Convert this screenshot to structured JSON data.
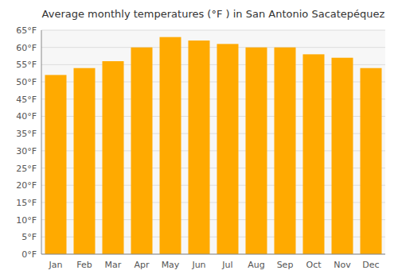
{
  "chart_data": {
    "type": "bar",
    "title": "Average monthly temperatures (°F ) in San Antonio Sacatepéquez",
    "categories": [
      "Jan",
      "Feb",
      "Mar",
      "Apr",
      "May",
      "Jun",
      "Jul",
      "Aug",
      "Sep",
      "Oct",
      "Nov",
      "Dec"
    ],
    "values": [
      52,
      54,
      56,
      60,
      63,
      62,
      61,
      60,
      60,
      58,
      57,
      54
    ],
    "color": "#FFAA00",
    "ylim": [
      0,
      65
    ],
    "yticks": [
      {
        "value": 0,
        "label": "0°F"
      },
      {
        "value": 5,
        "label": "5°F"
      },
      {
        "value": 10,
        "label": "10°F"
      },
      {
        "value": 15,
        "label": "15°F"
      },
      {
        "value": 20,
        "label": "20°F"
      },
      {
        "value": 25,
        "label": "25°F"
      },
      {
        "value": 30,
        "label": "30°F"
      },
      {
        "value": 35,
        "label": "35°F"
      },
      {
        "value": 40,
        "label": "40°F"
      },
      {
        "value": 45,
        "label": "45°F"
      },
      {
        "value": 50,
        "label": "50°F"
      },
      {
        "value": 55,
        "label": "55°F"
      },
      {
        "value": 60,
        "label": "60°F"
      },
      {
        "value": 65,
        "label": "65°F"
      }
    ],
    "grid": true
  }
}
